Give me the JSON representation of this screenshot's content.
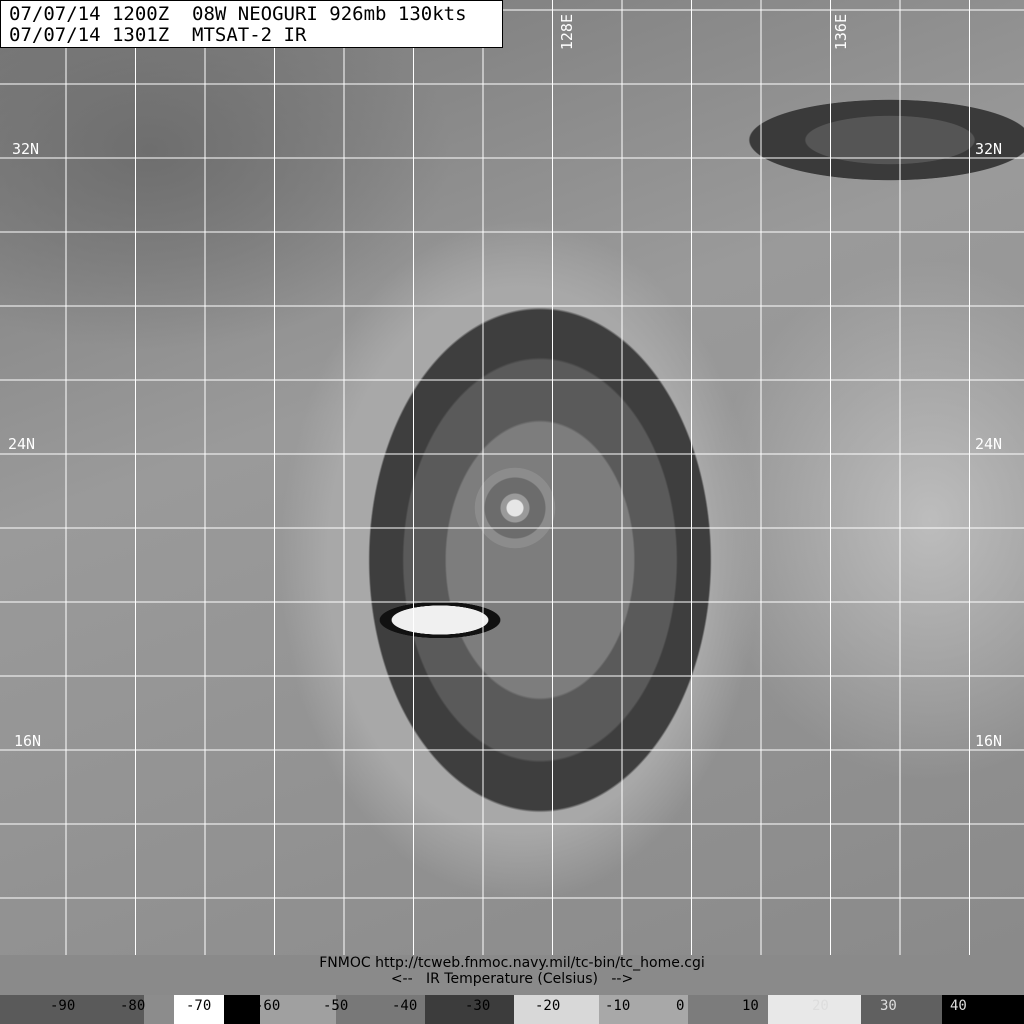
{
  "header": {
    "line1": "07/07/14 1200Z  08W NEOGURI 926mb 130kts",
    "line2": "07/07/14 1301Z  MTSAT-2 IR"
  },
  "grid_labels": {
    "lat": [
      "32N",
      "24N",
      "16N"
    ],
    "lon": [
      "128E",
      "136E"
    ]
  },
  "footer": {
    "source": "FNMOC http://tcweb.fnmoc.navy.mil/tc-bin/tc_home.cgi",
    "legend_title": "<--   IR Temperature (Celsius)   -->"
  },
  "colorbar": {
    "ticks": [
      "-90",
      "-80",
      "-70",
      "-60",
      "-50",
      "-40",
      "-30",
      "-20",
      "-10",
      "0",
      "10",
      "20",
      "30",
      "40"
    ],
    "segments": [
      {
        "color": "#5a5a5a"
      },
      {
        "color": "#8c8c8c"
      },
      {
        "color": "#ffffff"
      },
      {
        "color": "#000000"
      },
      {
        "color": "#a0a0a0"
      },
      {
        "color": "#787878"
      },
      {
        "color": "#3c3c3c"
      },
      {
        "color": "#d8d8d8"
      },
      {
        "color": "#a8a8a8"
      },
      {
        "color": "#7c7c7c"
      },
      {
        "color": "#e8e8e8"
      },
      {
        "color": "#606060"
      },
      {
        "color": "#000000"
      }
    ]
  }
}
